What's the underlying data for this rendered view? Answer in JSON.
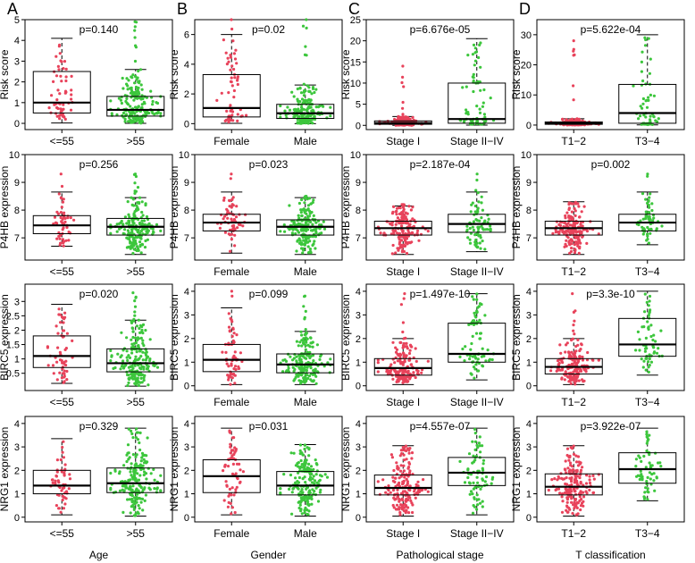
{
  "figure": {
    "panel_letters": [
      "A",
      "B",
      "C",
      "D"
    ],
    "column_xlabels": [
      "Age",
      "Gender",
      "Pathological stage",
      "T classification"
    ],
    "row_ylabels": [
      "Risk score",
      "P4HB expression",
      "BIRC5 expression",
      "NRG1 expression"
    ],
    "colors": {
      "group1": "#E8435B",
      "group2": "#3CC63C",
      "box": "#000000"
    }
  },
  "chart_data": [
    {
      "type": "box",
      "row": 0,
      "col": 0,
      "ylabel": "Risk score",
      "pvalue": "p=0.140",
      "ylim": [
        -0.3,
        5
      ],
      "ticks": [
        0,
        1,
        2,
        3,
        4,
        5
      ],
      "groups": [
        {
          "label": "<=55",
          "q1": 0.5,
          "median": 1.0,
          "q3": 2.5,
          "wlo": 0.02,
          "whi": 4.1,
          "n": 55,
          "max": 4.1,
          "skew": 0.55
        },
        {
          "label": ">55",
          "q1": 0.35,
          "median": 0.65,
          "q3": 1.3,
          "wlo": 0.0,
          "whi": 2.6,
          "n": 190,
          "max": 4.9,
          "skew": 0.65
        }
      ]
    },
    {
      "type": "box",
      "row": 0,
      "col": 1,
      "ylabel": "Risk score",
      "pvalue": "p=0.02",
      "ylim": [
        -0.4,
        7
      ],
      "ticks": [
        0,
        2,
        4,
        6
      ],
      "groups": [
        {
          "label": "Female",
          "q1": 0.45,
          "median": 1.05,
          "q3": 3.3,
          "wlo": 0.02,
          "whi": 6.0,
          "n": 60,
          "max": 7.0,
          "skew": 0.6
        },
        {
          "label": "Male",
          "q1": 0.35,
          "median": 0.7,
          "q3": 1.3,
          "wlo": 0.0,
          "whi": 2.6,
          "n": 185,
          "max": 7.0,
          "skew": 0.65
        }
      ]
    },
    {
      "type": "box",
      "row": 0,
      "col": 2,
      "ylabel": "Risk score",
      "pvalue": "p=6.676e-05",
      "ylim": [
        -1,
        25
      ],
      "ticks": [
        0,
        5,
        10,
        15,
        20,
        25
      ],
      "groups": [
        {
          "label": "Stage I",
          "q1": 0.25,
          "median": 0.55,
          "q3": 1.05,
          "wlo": 0.0,
          "whi": 2.1,
          "n": 170,
          "max": 14.0,
          "skew": 0.7
        },
        {
          "label": "Stage II−IV",
          "q1": 0.5,
          "median": 1.5,
          "q3": 10.0,
          "wlo": 0.05,
          "whi": 20.5,
          "n": 75,
          "max": 20.5,
          "skew": 0.5
        }
      ]
    },
    {
      "type": "box",
      "row": 0,
      "col": 3,
      "ylabel": "Risk score",
      "pvalue": "p=5.622e-04",
      "ylim": [
        -1.5,
        35
      ],
      "ticks": [
        0,
        10,
        20,
        30
      ],
      "groups": [
        {
          "label": "T1−2",
          "q1": 0.25,
          "median": 0.55,
          "q3": 1.05,
          "wlo": 0.0,
          "whi": 2.1,
          "n": 180,
          "max": 28.0,
          "skew": 0.75
        },
        {
          "label": "T3−4",
          "q1": 0.6,
          "median": 4.0,
          "q3": 13.5,
          "wlo": 0.05,
          "whi": 30.0,
          "n": 60,
          "max": 30.0,
          "skew": 0.5
        }
      ]
    },
    {
      "type": "box",
      "row": 1,
      "col": 0,
      "ylabel": "P4HB expression",
      "pvalue": "p=0.256",
      "ylim": [
        6.2,
        10
      ],
      "ticks": [
        7,
        8,
        9,
        10
      ],
      "groups": [
        {
          "label": "<=55",
          "q1": 7.15,
          "median": 7.45,
          "q3": 7.8,
          "wlo": 6.7,
          "whi": 8.65,
          "n": 55,
          "max": 9.3,
          "skew": 0.5
        },
        {
          "label": ">55",
          "q1": 7.1,
          "median": 7.4,
          "q3": 7.7,
          "wlo": 6.4,
          "whi": 8.45,
          "n": 190,
          "max": 9.3,
          "skew": 0.5
        }
      ]
    },
    {
      "type": "box",
      "row": 1,
      "col": 1,
      "ylabel": "P4HB expression",
      "pvalue": "p=0.023",
      "ylim": [
        6.2,
        10
      ],
      "ticks": [
        7,
        8,
        9,
        10
      ],
      "groups": [
        {
          "label": "Female",
          "q1": 7.25,
          "median": 7.55,
          "q3": 7.85,
          "wlo": 6.45,
          "whi": 8.65,
          "n": 60,
          "max": 9.3,
          "skew": 0.5
        },
        {
          "label": "Male",
          "q1": 7.1,
          "median": 7.4,
          "q3": 7.65,
          "wlo": 6.4,
          "whi": 8.45,
          "n": 185,
          "max": 8.5,
          "skew": 0.5
        }
      ]
    },
    {
      "type": "box",
      "row": 1,
      "col": 2,
      "ylabel": "P4HB expression",
      "pvalue": "p=2.187e-04",
      "ylim": [
        6.2,
        10
      ],
      "ticks": [
        7,
        8,
        9,
        10
      ],
      "groups": [
        {
          "label": "Stage I",
          "q1": 7.1,
          "median": 7.35,
          "q3": 7.6,
          "wlo": 6.4,
          "whi": 8.15,
          "n": 170,
          "max": 8.2,
          "skew": 0.5
        },
        {
          "label": "Stage II−IV",
          "q1": 7.2,
          "median": 7.5,
          "q3": 7.85,
          "wlo": 6.5,
          "whi": 8.65,
          "n": 75,
          "max": 9.3,
          "skew": 0.5
        }
      ]
    },
    {
      "type": "box",
      "row": 1,
      "col": 3,
      "ylabel": "P4HB expression",
      "pvalue": "p=0.002",
      "ylim": [
        6.2,
        10
      ],
      "ticks": [
        7,
        8,
        9,
        10
      ],
      "groups": [
        {
          "label": "T1−2",
          "q1": 7.1,
          "median": 7.35,
          "q3": 7.6,
          "wlo": 6.4,
          "whi": 8.3,
          "n": 180,
          "max": 8.3,
          "skew": 0.5
        },
        {
          "label": "T3−4",
          "q1": 7.25,
          "median": 7.55,
          "q3": 7.85,
          "wlo": 6.75,
          "whi": 8.65,
          "n": 60,
          "max": 9.3,
          "skew": 0.5
        }
      ]
    },
    {
      "type": "box",
      "row": 2,
      "col": 0,
      "ylabel": "BIRC5 expression",
      "pvalue": "p=0.020",
      "ylim": [
        -0.1,
        3.6
      ],
      "ticks": [
        0.5,
        1.0,
        1.5,
        2.0,
        2.5,
        3.0
      ],
      "groups": [
        {
          "label": "<=55",
          "q1": 0.7,
          "median": 1.1,
          "q3": 1.8,
          "wlo": 0.15,
          "whi": 2.9,
          "n": 55,
          "max": 2.9,
          "skew": 0.5
        },
        {
          "label": ">55",
          "q1": 0.55,
          "median": 0.85,
          "q3": 1.35,
          "wlo": 0.05,
          "whi": 2.35,
          "n": 190,
          "max": 3.3,
          "skew": 0.55
        }
      ]
    },
    {
      "type": "box",
      "row": 2,
      "col": 1,
      "ylabel": "BIRC5 expression",
      "pvalue": "p=0.099",
      "ylim": [
        -0.2,
        4.3
      ],
      "ticks": [
        0,
        1,
        2,
        3,
        4
      ],
      "groups": [
        {
          "label": "Female",
          "q1": 0.6,
          "median": 1.1,
          "q3": 1.75,
          "wlo": 0.05,
          "whi": 3.3,
          "n": 60,
          "max": 4.0,
          "skew": 0.5
        },
        {
          "label": "Male",
          "q1": 0.55,
          "median": 0.9,
          "q3": 1.35,
          "wlo": 0.05,
          "whi": 2.3,
          "n": 185,
          "max": 3.8,
          "skew": 0.55
        }
      ]
    },
    {
      "type": "box",
      "row": 2,
      "col": 2,
      "ylabel": "BIRC5 expression",
      "pvalue": "p=1.497e-10",
      "ylim": [
        -0.2,
        4.3
      ],
      "ticks": [
        0,
        1,
        2,
        3,
        4
      ],
      "groups": [
        {
          "label": "Stage I",
          "q1": 0.45,
          "median": 0.75,
          "q3": 1.15,
          "wlo": 0.05,
          "whi": 2.0,
          "n": 170,
          "max": 3.9,
          "skew": 0.55
        },
        {
          "label": "Stage II−IV",
          "q1": 1.0,
          "median": 1.35,
          "q3": 2.65,
          "wlo": 0.25,
          "whi": 3.9,
          "n": 75,
          "max": 3.9,
          "skew": 0.5
        }
      ]
    },
    {
      "type": "box",
      "row": 2,
      "col": 3,
      "ylabel": "BIRC5 expression",
      "pvalue": "p=3.3e-10",
      "ylim": [
        -0.2,
        4.3
      ],
      "ticks": [
        0,
        1,
        2,
        3,
        4
      ],
      "groups": [
        {
          "label": "T1−2",
          "q1": 0.5,
          "median": 0.8,
          "q3": 1.15,
          "wlo": 0.05,
          "whi": 2.0,
          "n": 180,
          "max": 3.9,
          "skew": 0.55
        },
        {
          "label": "T3−4",
          "q1": 1.25,
          "median": 1.75,
          "q3": 2.85,
          "wlo": 0.45,
          "whi": 4.0,
          "n": 60,
          "max": 4.0,
          "skew": 0.5
        }
      ]
    },
    {
      "type": "box",
      "row": 3,
      "col": 0,
      "ylabel": "NRG1 expression",
      "pvalue": "p=0.329",
      "ylim": [
        -0.2,
        4.3
      ],
      "ticks": [
        0,
        1,
        2,
        3,
        4
      ],
      "groups": [
        {
          "label": "<=55",
          "q1": 1.0,
          "median": 1.35,
          "q3": 2.0,
          "wlo": 0.1,
          "whi": 3.35,
          "n": 55,
          "max": 3.35,
          "skew": 0.5
        },
        {
          "label": ">55",
          "q1": 1.05,
          "median": 1.45,
          "q3": 2.1,
          "wlo": 0.05,
          "whi": 3.8,
          "n": 190,
          "max": 3.8,
          "skew": 0.5
        }
      ]
    },
    {
      "type": "box",
      "row": 3,
      "col": 1,
      "ylabel": "NRG1 expression",
      "pvalue": "p=0.031",
      "ylim": [
        -0.2,
        4.3
      ],
      "ticks": [
        0,
        1,
        2,
        3,
        4
      ],
      "groups": [
        {
          "label": "Female",
          "q1": 1.05,
          "median": 1.75,
          "q3": 2.45,
          "wlo": 0.1,
          "whi": 3.8,
          "n": 60,
          "max": 3.8,
          "skew": 0.5
        },
        {
          "label": "Male",
          "q1": 0.95,
          "median": 1.35,
          "q3": 1.95,
          "wlo": 0.05,
          "whi": 3.1,
          "n": 185,
          "max": 3.1,
          "skew": 0.5
        }
      ]
    },
    {
      "type": "box",
      "row": 3,
      "col": 2,
      "ylabel": "NRG1 expression",
      "pvalue": "p=4.557e-07",
      "ylim": [
        -0.2,
        4.3
      ],
      "ticks": [
        0,
        1,
        2,
        3,
        4
      ],
      "groups": [
        {
          "label": "Stage I",
          "q1": 0.95,
          "median": 1.25,
          "q3": 1.8,
          "wlo": 0.05,
          "whi": 3.05,
          "n": 170,
          "max": 3.05,
          "skew": 0.5
        },
        {
          "label": "Stage II−IV",
          "q1": 1.35,
          "median": 1.9,
          "q3": 2.55,
          "wlo": 0.1,
          "whi": 3.8,
          "n": 75,
          "max": 3.8,
          "skew": 0.5
        }
      ]
    },
    {
      "type": "box",
      "row": 3,
      "col": 3,
      "ylabel": "NRG1 expression",
      "pvalue": "p=3.922e-07",
      "ylim": [
        -0.2,
        4.3
      ],
      "ticks": [
        0,
        1,
        2,
        3,
        4
      ],
      "groups": [
        {
          "label": "T1−2",
          "q1": 0.95,
          "median": 1.3,
          "q3": 1.85,
          "wlo": 0.05,
          "whi": 3.05,
          "n": 180,
          "max": 3.05,
          "skew": 0.5
        },
        {
          "label": "T3−4",
          "q1": 1.45,
          "median": 2.05,
          "q3": 2.75,
          "wlo": 0.7,
          "whi": 3.8,
          "n": 60,
          "max": 3.8,
          "skew": 0.5
        }
      ]
    }
  ]
}
